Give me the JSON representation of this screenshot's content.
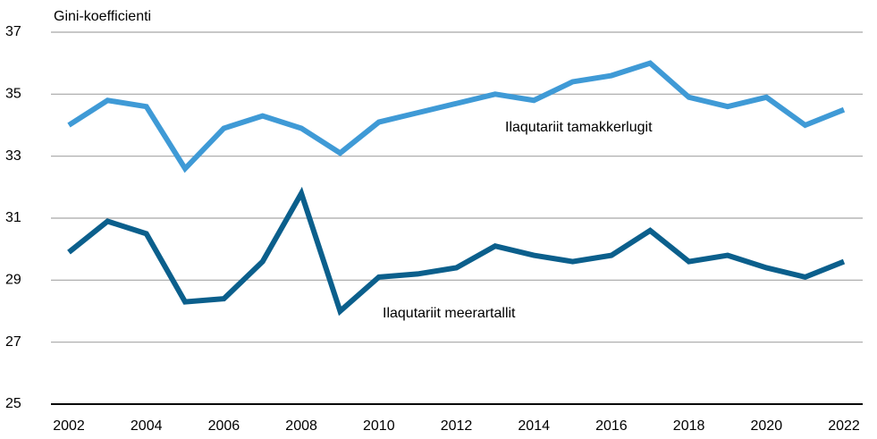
{
  "chart_data": {
    "type": "line",
    "y_label": "Gini-koefficienti",
    "x": [
      2002,
      2003,
      2004,
      2005,
      2006,
      2007,
      2008,
      2009,
      2010,
      2011,
      2012,
      2013,
      2014,
      2015,
      2016,
      2017,
      2018,
      2019,
      2020,
      2021,
      2022
    ],
    "series": [
      {
        "name": "Ilaqutariit tamakkerlugit",
        "color": "#3f9ad6",
        "values": [
          34.0,
          34.8,
          34.6,
          32.6,
          33.9,
          34.3,
          33.9,
          33.1,
          34.1,
          34.4,
          34.7,
          35.0,
          34.8,
          35.4,
          35.6,
          36.0,
          34.9,
          34.6,
          34.9,
          34.0,
          34.5
        ]
      },
      {
        "name": "Ilaqutariit meerartallit",
        "color": "#0b5f8c",
        "values": [
          29.9,
          30.9,
          30.5,
          28.3,
          28.4,
          29.6,
          31.8,
          28.0,
          29.1,
          29.2,
          29.4,
          30.1,
          29.8,
          29.6,
          29.8,
          30.6,
          29.6,
          29.8,
          29.4,
          29.1,
          29.6
        ]
      }
    ],
    "xlim": [
      2002,
      2022
    ],
    "xticks": [
      2002,
      2004,
      2006,
      2008,
      2010,
      2012,
      2014,
      2016,
      2018,
      2020,
      2022
    ],
    "ylim": [
      25,
      37
    ],
    "yticks": [
      25,
      27,
      29,
      31,
      33,
      35,
      37
    ],
    "grid": true
  }
}
